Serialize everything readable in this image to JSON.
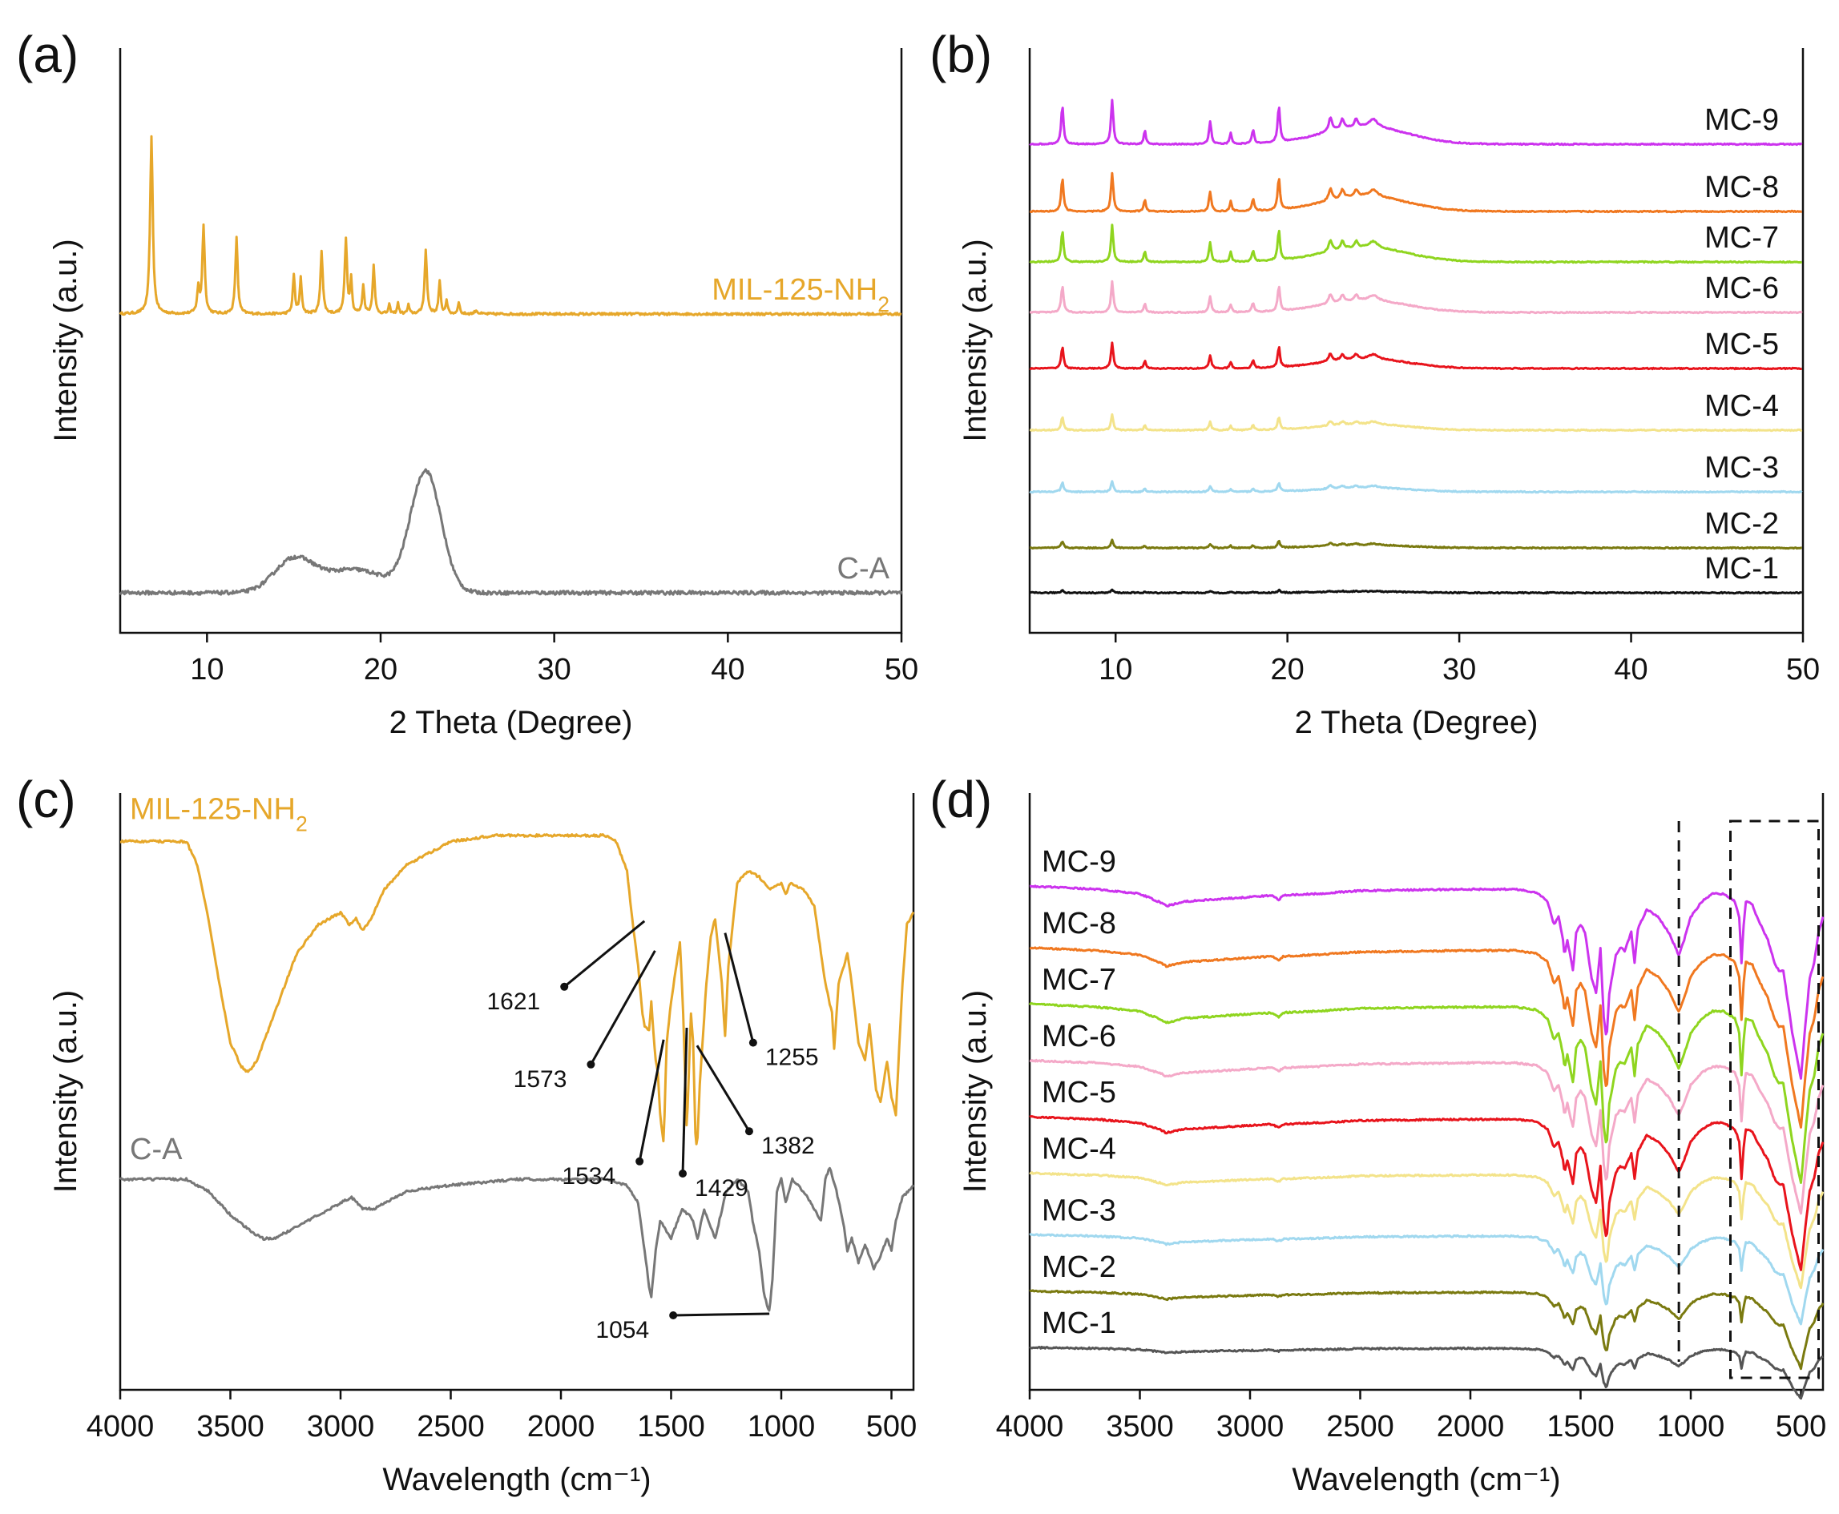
{
  "figure": {
    "panels": [
      "a",
      "b",
      "c",
      "d"
    ]
  },
  "chart_data": [
    {
      "id": "a",
      "panel_label": "(a)",
      "type": "line",
      "xlabel": "2 Theta (Degree)",
      "ylabel": "Intensity (a.u.)",
      "xlim": [
        5,
        50
      ],
      "xticks": [
        10,
        20,
        30,
        40,
        50
      ],
      "series": [
        {
          "name": "MIL-125-NH2",
          "label_main": "MIL-125-NH",
          "label_sub": "2",
          "color": "#e6a72a",
          "baseline": 0.6,
          "noise": 0.0025,
          "broad": [],
          "peaks": [
            [
              6.8,
              1.0,
              0.09
            ],
            [
              9.5,
              0.14,
              0.08
            ],
            [
              9.8,
              0.5,
              0.08
            ],
            [
              11.7,
              0.43,
              0.08
            ],
            [
              15.0,
              0.22,
              0.07
            ],
            [
              15.4,
              0.2,
              0.07
            ],
            [
              16.6,
              0.36,
              0.08
            ],
            [
              18.0,
              0.42,
              0.08
            ],
            [
              18.3,
              0.2,
              0.06
            ],
            [
              19.0,
              0.16,
              0.07
            ],
            [
              19.6,
              0.28,
              0.07
            ],
            [
              20.5,
              0.05,
              0.06
            ],
            [
              21.0,
              0.06,
              0.06
            ],
            [
              21.6,
              0.05,
              0.06
            ],
            [
              22.6,
              0.36,
              0.08
            ],
            [
              23.4,
              0.18,
              0.07
            ],
            [
              23.8,
              0.08,
              0.06
            ],
            [
              24.5,
              0.07,
              0.06
            ],
            [
              25.5,
              0.02,
              0.1
            ]
          ]
        },
        {
          "name": "C-A",
          "label_main": "C-A",
          "label_sub": "",
          "color": "#777777",
          "baseline": 0.0,
          "noise": 0.004,
          "peaks": [],
          "broad": [
            [
              15.0,
              0.07,
              1.6
            ],
            [
              18.5,
              0.05,
              2.5
            ],
            [
              22.6,
              0.26,
              1.25
            ]
          ]
        }
      ]
    },
    {
      "id": "b",
      "panel_label": "(b)",
      "type": "line",
      "xlabel": "2 Theta (Degree)",
      "ylabel": "Intensity (a.u.)",
      "xlim": [
        5,
        50
      ],
      "xticks": [
        10,
        20,
        30,
        40,
        50
      ],
      "peaks": [
        [
          6.9,
          1.0,
          0.08
        ],
        [
          9.8,
          1.15,
          0.08
        ],
        [
          11.7,
          0.35,
          0.07
        ],
        [
          15.5,
          0.6,
          0.08
        ],
        [
          16.7,
          0.3,
          0.07
        ],
        [
          18.0,
          0.35,
          0.08
        ],
        [
          19.5,
          0.95,
          0.08
        ],
        [
          22.5,
          0.35,
          0.12
        ],
        [
          23.2,
          0.25,
          0.12
        ],
        [
          24.0,
          0.2,
          0.12
        ],
        [
          25.0,
          0.2,
          0.3
        ]
      ],
      "hump": [
        24.5,
        0.18,
        3.5
      ],
      "series": [
        {
          "name": "MC-1",
          "color": "#111111",
          "offset": 0.0,
          "scale": 0.08
        },
        {
          "name": "MC-2",
          "color": "#7a7a10",
          "offset": 0.08,
          "scale": 0.2
        },
        {
          "name": "MC-3",
          "color": "#a0d8ef",
          "offset": 0.18,
          "scale": 0.28
        },
        {
          "name": "MC-4",
          "color": "#f3e38a",
          "offset": 0.29,
          "scale": 0.4
        },
        {
          "name": "MC-5",
          "color": "#e8141c",
          "offset": 0.4,
          "scale": 0.65
        },
        {
          "name": "MC-6",
          "color": "#f4a9c8",
          "offset": 0.5,
          "scale": 0.8
        },
        {
          "name": "MC-7",
          "color": "#8fd51f",
          "offset": 0.59,
          "scale": 0.95
        },
        {
          "name": "MC-8",
          "color": "#f07820",
          "offset": 0.68,
          "scale": 1.0
        },
        {
          "name": "MC-9",
          "color": "#cc33ee",
          "offset": 0.8,
          "scale": 1.15
        }
      ]
    },
    {
      "id": "c",
      "panel_label": "(c)",
      "type": "line",
      "xlabel": "Wavelength (cm⁻¹)",
      "ylabel": "Intensity (a.u.)",
      "xlim": [
        4000,
        400
      ],
      "xticks": [
        4000,
        3500,
        3000,
        2500,
        2000,
        1500,
        1000,
        500
      ],
      "series": [
        {
          "name": "MIL-125-NH2",
          "label_main": "MIL-125-NH",
          "label_sub": "2",
          "color": "#e6a72a",
          "x": [
            4000,
            3700,
            3650,
            3600,
            3550,
            3500,
            3450,
            3420,
            3380,
            3300,
            3200,
            3100,
            3000,
            2960,
            2930,
            2900,
            2860,
            2800,
            2700,
            2500,
            2300,
            2000,
            1800,
            1750,
            1700,
            1680,
            1650,
            1630,
            1621,
            1600,
            1590,
            1573,
            1560,
            1550,
            1534,
            1520,
            1500,
            1480,
            1460,
            1445,
            1429,
            1410,
            1400,
            1390,
            1382,
            1370,
            1340,
            1320,
            1300,
            1270,
            1255,
            1240,
            1200,
            1150,
            1100,
            1050,
            1000,
            980,
            960,
            900,
            850,
            800,
            770,
            760,
            740,
            700,
            680,
            650,
            620,
            600,
            570,
            550,
            520,
            500,
            480,
            450,
            430,
            400
          ],
          "y": [
            0.79,
            0.79,
            0.75,
            0.66,
            0.55,
            0.45,
            0.41,
            0.4,
            0.42,
            0.5,
            0.6,
            0.65,
            0.67,
            0.65,
            0.66,
            0.64,
            0.66,
            0.71,
            0.75,
            0.79,
            0.8,
            0.8,
            0.8,
            0.79,
            0.74,
            0.67,
            0.58,
            0.5,
            0.48,
            0.47,
            0.52,
            0.43,
            0.4,
            0.33,
            0.28,
            0.45,
            0.52,
            0.57,
            0.62,
            0.5,
            0.3,
            0.5,
            0.45,
            0.3,
            0.27,
            0.38,
            0.55,
            0.63,
            0.66,
            0.55,
            0.46,
            0.58,
            0.72,
            0.74,
            0.73,
            0.71,
            0.72,
            0.7,
            0.72,
            0.71,
            0.68,
            0.55,
            0.5,
            0.44,
            0.55,
            0.6,
            0.55,
            0.45,
            0.42,
            0.48,
            0.37,
            0.35,
            0.42,
            0.36,
            0.33,
            0.55,
            0.65,
            0.67
          ]
        },
        {
          "name": "C-A",
          "label_main": "C-A",
          "label_sub": "",
          "color": "#777777",
          "x": [
            4000,
            3700,
            3600,
            3500,
            3400,
            3350,
            3300,
            3200,
            3100,
            3000,
            2950,
            2900,
            2850,
            2800,
            2700,
            2500,
            2200,
            1800,
            1700,
            1650,
            1620,
            1600,
            1590,
            1570,
            1550,
            1500,
            1450,
            1420,
            1400,
            1380,
            1350,
            1320,
            1300,
            1250,
            1200,
            1150,
            1130,
            1100,
            1080,
            1060,
            1054,
            1040,
            1020,
            1000,
            980,
            950,
            900,
            850,
            820,
            800,
            780,
            750,
            720,
            700,
            680,
            650,
            620,
            600,
            580,
            550,
            520,
            500,
            480,
            450,
            400
          ],
          "y": [
            0.22,
            0.22,
            0.2,
            0.16,
            0.13,
            0.12,
            0.12,
            0.14,
            0.16,
            0.18,
            0.19,
            0.17,
            0.17,
            0.18,
            0.2,
            0.21,
            0.22,
            0.22,
            0.21,
            0.18,
            0.1,
            0.04,
            0.02,
            0.1,
            0.15,
            0.12,
            0.17,
            0.16,
            0.15,
            0.12,
            0.17,
            0.14,
            0.12,
            0.2,
            0.22,
            0.2,
            0.15,
            0.1,
            0.03,
            0.0,
            0.0,
            0.05,
            0.2,
            0.22,
            0.18,
            0.22,
            0.2,
            0.17,
            0.15,
            0.22,
            0.24,
            0.2,
            0.15,
            0.1,
            0.12,
            0.08,
            0.11,
            0.09,
            0.07,
            0.09,
            0.12,
            0.1,
            0.15,
            0.19,
            0.21
          ]
        }
      ],
      "annotations": [
        "1621",
        "1573",
        "1534",
        "1429",
        "1382",
        "1255",
        "1054"
      ]
    },
    {
      "id": "d",
      "panel_label": "(d)",
      "type": "line",
      "xlabel": "Wavelength (cm⁻¹)",
      "ylabel": "Intensity (a.u.)",
      "xlim": [
        4000,
        400
      ],
      "xticks": [
        4000,
        3500,
        3000,
        2500,
        2000,
        1500,
        1000,
        500
      ],
      "dashed_line_x": 1054,
      "dashed_box_x": [
        820,
        420
      ],
      "template": {
        "x": [
          4000,
          3700,
          3500,
          3400,
          3380,
          3300,
          3000,
          2900,
          2870,
          2850,
          2700,
          2500,
          2000,
          1800,
          1700,
          1650,
          1621,
          1600,
          1580,
          1573,
          1560,
          1534,
          1520,
          1500,
          1480,
          1450,
          1429,
          1410,
          1395,
          1382,
          1370,
          1340,
          1320,
          1300,
          1270,
          1255,
          1240,
          1200,
          1150,
          1100,
          1054,
          1030,
          1000,
          950,
          900,
          850,
          800,
          780,
          770,
          760,
          750,
          720,
          700,
          650,
          620,
          600,
          580,
          560,
          540,
          520,
          500,
          480,
          460,
          440,
          420,
          400
        ],
        "y": [
          0,
          -0.02,
          -0.05,
          -0.11,
          -0.13,
          -0.1,
          -0.07,
          -0.06,
          -0.09,
          -0.06,
          -0.05,
          -0.03,
          -0.02,
          -0.02,
          -0.04,
          -0.1,
          -0.25,
          -0.2,
          -0.35,
          -0.45,
          -0.35,
          -0.55,
          -0.3,
          -0.25,
          -0.3,
          -0.6,
          -0.7,
          -0.4,
          -0.85,
          -1.0,
          -0.7,
          -0.45,
          -0.4,
          -0.42,
          -0.3,
          -0.5,
          -0.28,
          -0.15,
          -0.2,
          -0.3,
          -0.45,
          -0.35,
          -0.2,
          -0.1,
          -0.05,
          -0.05,
          -0.1,
          -0.2,
          -0.5,
          -0.25,
          -0.1,
          -0.12,
          -0.2,
          -0.35,
          -0.5,
          -0.55,
          -0.55,
          -0.75,
          -0.95,
          -1.1,
          -1.25,
          -0.9,
          -0.6,
          -0.5,
          -0.3,
          -0.2
        ]
      },
      "series": [
        {
          "name": "MC-1",
          "color": "#555555",
          "offset": 0.02,
          "scale": 0.08
        },
        {
          "name": "MC-2",
          "color": "#7a7a10",
          "offset": 0.13,
          "scale": 0.12
        },
        {
          "name": "MC-3",
          "color": "#a0d8ef",
          "offset": 0.24,
          "scale": 0.14
        },
        {
          "name": "MC-4",
          "color": "#f3e38a",
          "offset": 0.36,
          "scale": 0.18
        },
        {
          "name": "MC-5",
          "color": "#e8141c",
          "offset": 0.47,
          "scale": 0.24
        },
        {
          "name": "MC-6",
          "color": "#f4a9c8",
          "offset": 0.58,
          "scale": 0.24
        },
        {
          "name": "MC-7",
          "color": "#8fd51f",
          "offset": 0.69,
          "scale": 0.28
        },
        {
          "name": "MC-8",
          "color": "#f07820",
          "offset": 0.8,
          "scale": 0.28
        },
        {
          "name": "MC-9",
          "color": "#cc33ee",
          "offset": 0.92,
          "scale": 0.3
        }
      ]
    }
  ]
}
